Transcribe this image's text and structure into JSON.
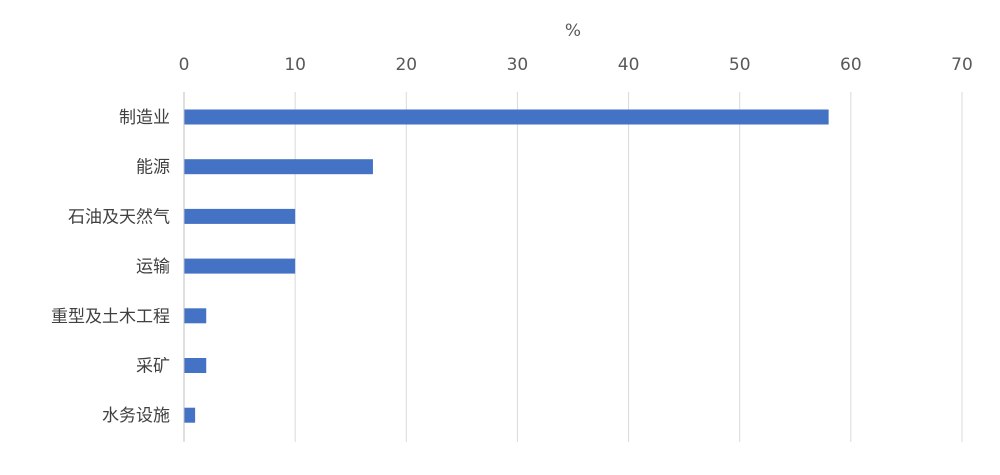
{
  "chart_data": {
    "type": "bar",
    "orientation": "horizontal",
    "axis_position": "top",
    "unit_label": "%",
    "categories": [
      "制造业",
      "能源",
      "石油及天然气",
      "运输",
      "重型及土木工程",
      "采矿",
      "水务设施"
    ],
    "values": [
      58,
      17,
      10,
      10,
      2,
      2,
      1
    ],
    "xlim": [
      0,
      70
    ],
    "xticks": [
      0,
      10,
      20,
      30,
      40,
      50,
      60,
      70
    ],
    "grid": true,
    "legend": "none",
    "bar_color": "#4472c4"
  }
}
